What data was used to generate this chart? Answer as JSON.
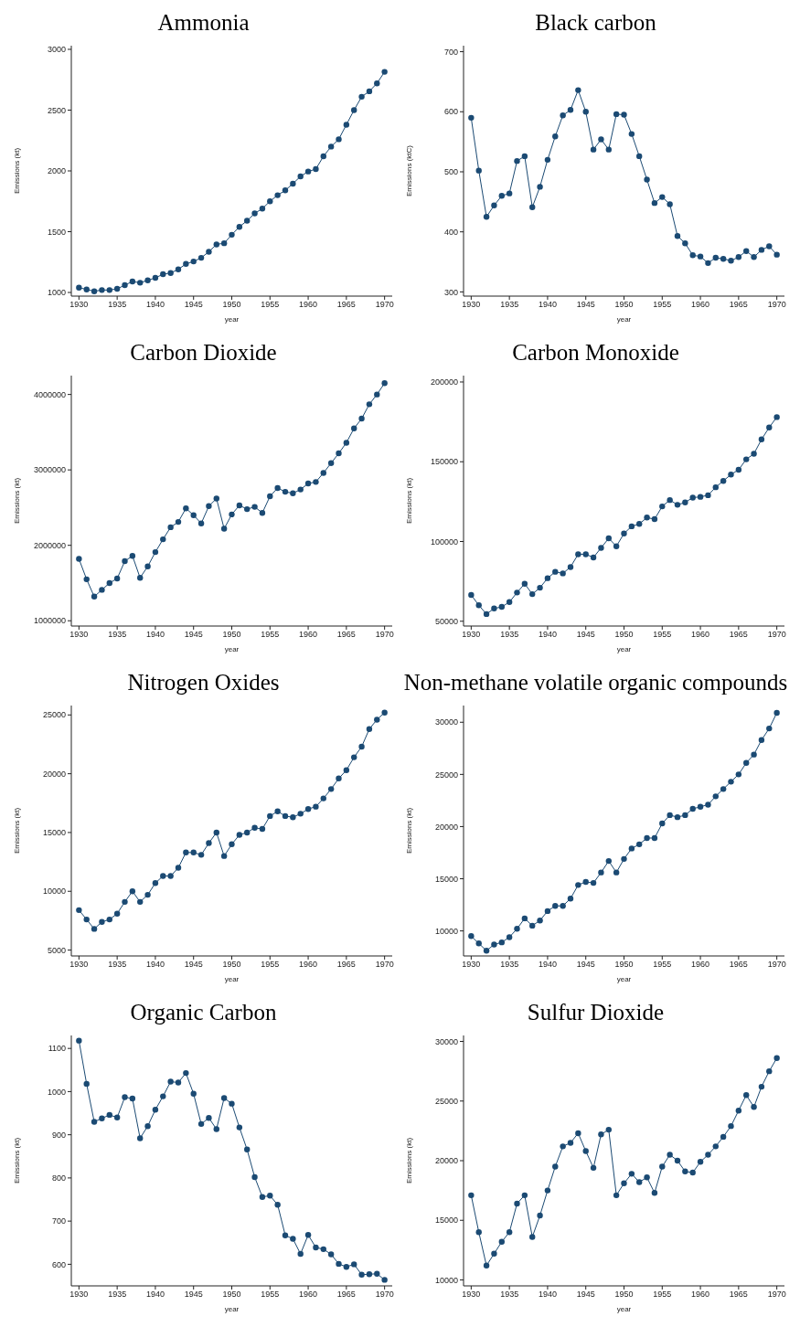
{
  "chart_data": [
    {
      "type": "line",
      "title": "Ammonia",
      "xlabel": "year",
      "ylabel": "Emissions (kt)",
      "color": "#1b4a73",
      "marker": "circle",
      "xlim": [
        1929,
        1971
      ],
      "xticks": [
        1930,
        1935,
        1940,
        1945,
        1950,
        1955,
        1960,
        1965,
        1970
      ],
      "ylim": [
        970,
        3030
      ],
      "yticks": [
        1000,
        1500,
        2000,
        2500,
        3000
      ],
      "x": [
        1930,
        1931,
        1932,
        1933,
        1934,
        1935,
        1936,
        1937,
        1938,
        1939,
        1940,
        1941,
        1942,
        1943,
        1944,
        1945,
        1946,
        1947,
        1948,
        1949,
        1950,
        1951,
        1952,
        1953,
        1954,
        1955,
        1956,
        1957,
        1958,
        1959,
        1960,
        1961,
        1962,
        1963,
        1964,
        1965,
        1966,
        1967,
        1968,
        1969,
        1970
      ],
      "values": [
        1040,
        1025,
        1010,
        1020,
        1020,
        1030,
        1060,
        1090,
        1080,
        1100,
        1120,
        1150,
        1160,
        1190,
        1235,
        1255,
        1285,
        1335,
        1395,
        1405,
        1475,
        1540,
        1590,
        1650,
        1690,
        1750,
        1800,
        1840,
        1895,
        1955,
        1995,
        2015,
        2120,
        2200,
        2260,
        2380,
        2500,
        2610,
        2655,
        2720,
        2815
      ]
    },
    {
      "type": "line",
      "title": "Black carbon",
      "xlabel": "year",
      "ylabel": "Emissions (ktC)",
      "color": "#1b4a73",
      "marker": "circle",
      "xlim": [
        1929,
        1971
      ],
      "xticks": [
        1930,
        1935,
        1940,
        1945,
        1950,
        1955,
        1960,
        1965,
        1970
      ],
      "ylim": [
        293,
        710
      ],
      "yticks": [
        300,
        400,
        500,
        600,
        700
      ],
      "x": [
        1930,
        1931,
        1932,
        1933,
        1934,
        1935,
        1936,
        1937,
        1938,
        1939,
        1940,
        1941,
        1942,
        1943,
        1944,
        1945,
        1946,
        1947,
        1948,
        1949,
        1950,
        1951,
        1952,
        1953,
        1954,
        1955,
        1956,
        1957,
        1958,
        1959,
        1960,
        1961,
        1962,
        1963,
        1964,
        1965,
        1966,
        1967,
        1968,
        1969,
        1970
      ],
      "values": [
        590,
        502,
        425,
        444,
        460,
        464,
        518,
        526,
        441,
        475,
        520,
        559,
        594,
        603,
        636,
        600,
        537,
        554,
        537,
        596,
        595,
        563,
        526,
        487,
        448,
        458,
        446,
        393,
        381,
        361,
        359,
        348,
        357,
        355,
        352,
        358,
        368,
        358,
        370,
        376,
        362
      ]
    },
    {
      "type": "line",
      "title": "Carbon Dioxide",
      "xlabel": "year",
      "ylabel": "Emissions (kt)",
      "color": "#1b4a73",
      "marker": "circle",
      "xlim": [
        1929,
        1971
      ],
      "xticks": [
        1930,
        1935,
        1940,
        1945,
        1950,
        1955,
        1960,
        1965,
        1970
      ],
      "ylim": [
        930000,
        4250000
      ],
      "yticks": [
        1000000,
        2000000,
        3000000,
        4000000
      ],
      "x": [
        1930,
        1931,
        1932,
        1933,
        1934,
        1935,
        1936,
        1937,
        1938,
        1939,
        1940,
        1941,
        1942,
        1943,
        1944,
        1945,
        1946,
        1947,
        1948,
        1949,
        1950,
        1951,
        1952,
        1953,
        1954,
        1955,
        1956,
        1957,
        1958,
        1959,
        1960,
        1961,
        1962,
        1963,
        1964,
        1965,
        1966,
        1967,
        1968,
        1969,
        1970
      ],
      "values": [
        1820000,
        1550000,
        1320000,
        1410000,
        1500000,
        1560000,
        1790000,
        1860000,
        1570000,
        1720000,
        1910000,
        2080000,
        2240000,
        2310000,
        2490000,
        2400000,
        2290000,
        2520000,
        2620000,
        2220000,
        2410000,
        2530000,
        2480000,
        2510000,
        2430000,
        2650000,
        2760000,
        2710000,
        2690000,
        2740000,
        2820000,
        2840000,
        2960000,
        3090000,
        3220000,
        3360000,
        3550000,
        3680000,
        3870000,
        4000000,
        4150000
      ]
    },
    {
      "type": "line",
      "title": "Carbon Monoxide",
      "xlabel": "year",
      "ylabel": "Emissions (kt)",
      "color": "#1b4a73",
      "marker": "circle",
      "xlim": [
        1929,
        1971
      ],
      "xticks": [
        1930,
        1935,
        1940,
        1945,
        1950,
        1955,
        1960,
        1965,
        1970
      ],
      "ylim": [
        47000,
        204000
      ],
      "yticks": [
        50000,
        100000,
        150000,
        200000
      ],
      "x": [
        1930,
        1931,
        1932,
        1933,
        1934,
        1935,
        1936,
        1937,
        1938,
        1939,
        1940,
        1941,
        1942,
        1943,
        1944,
        1945,
        1946,
        1947,
        1948,
        1949,
        1950,
        1951,
        1952,
        1953,
        1954,
        1955,
        1956,
        1957,
        1958,
        1959,
        1960,
        1961,
        1962,
        1963,
        1964,
        1965,
        1966,
        1967,
        1968,
        1969,
        1970
      ],
      "values": [
        66500,
        60000,
        54500,
        58000,
        59000,
        62000,
        68000,
        73500,
        67000,
        71000,
        77000,
        81000,
        80000,
        84000,
        92000,
        92000,
        90000,
        96000,
        102000,
        97000,
        105000,
        109500,
        111000,
        115000,
        114000,
        122000,
        126000,
        123000,
        124500,
        127500,
        128000,
        129000,
        134000,
        138000,
        142000,
        145000,
        151500,
        155000,
        164000,
        171500,
        178000
      ]
    },
    {
      "type": "line",
      "title": "Nitrogen Oxides",
      "xlabel": "year",
      "ylabel": "Emissions (kt)",
      "color": "#1b4a73",
      "marker": "circle",
      "xlim": [
        1929,
        1971
      ],
      "xticks": [
        1930,
        1935,
        1940,
        1945,
        1950,
        1955,
        1960,
        1965,
        1970
      ],
      "ylim": [
        4500,
        25800
      ],
      "yticks": [
        5000,
        10000,
        15000,
        20000,
        25000
      ],
      "x": [
        1930,
        1931,
        1932,
        1933,
        1934,
        1935,
        1936,
        1937,
        1938,
        1939,
        1940,
        1941,
        1942,
        1943,
        1944,
        1945,
        1946,
        1947,
        1948,
        1949,
        1950,
        1951,
        1952,
        1953,
        1954,
        1955,
        1956,
        1957,
        1958,
        1959,
        1960,
        1961,
        1962,
        1963,
        1964,
        1965,
        1966,
        1967,
        1968,
        1969,
        1970
      ],
      "values": [
        8400,
        7600,
        6800,
        7400,
        7600,
        8100,
        9100,
        10000,
        9100,
        9700,
        10700,
        11300,
        11300,
        12000,
        13300,
        13300,
        13100,
        14100,
        15000,
        13000,
        14000,
        14800,
        15000,
        15400,
        15300,
        16400,
        16800,
        16400,
        16300,
        16600,
        17000,
        17200,
        17900,
        18700,
        19600,
        20300,
        21400,
        22300,
        23800,
        24600,
        25200
      ]
    },
    {
      "type": "line",
      "title": "Non-methane volatile organic compounds",
      "xlabel": "year",
      "ylabel": "Emissions (kt)",
      "color": "#1b4a73",
      "marker": "circle",
      "xlim": [
        1929,
        1971
      ],
      "xticks": [
        1930,
        1935,
        1940,
        1945,
        1950,
        1955,
        1960,
        1965,
        1970
      ],
      "ylim": [
        7600,
        31600
      ],
      "yticks": [
        10000,
        15000,
        20000,
        25000,
        30000
      ],
      "x": [
        1930,
        1931,
        1932,
        1933,
        1934,
        1935,
        1936,
        1937,
        1938,
        1939,
        1940,
        1941,
        1942,
        1943,
        1944,
        1945,
        1946,
        1947,
        1948,
        1949,
        1950,
        1951,
        1952,
        1953,
        1954,
        1955,
        1956,
        1957,
        1958,
        1959,
        1960,
        1961,
        1962,
        1963,
        1964,
        1965,
        1966,
        1967,
        1968,
        1969,
        1970
      ],
      "values": [
        9500,
        8800,
        8100,
        8700,
        8900,
        9400,
        10200,
        11200,
        10500,
        11000,
        11900,
        12400,
        12400,
        13100,
        14400,
        14700,
        14600,
        15600,
        16700,
        15600,
        16900,
        17900,
        18300,
        18900,
        18900,
        20300,
        21100,
        20900,
        21100,
        21700,
        21900,
        22100,
        22900,
        23600,
        24300,
        25000,
        26100,
        26900,
        28300,
        29400,
        30900
      ]
    },
    {
      "type": "line",
      "title": "Organic Carbon",
      "xlabel": "year",
      "ylabel": "Emissions (kt)",
      "color": "#1b4a73",
      "marker": "circle",
      "xlim": [
        1929,
        1971
      ],
      "xticks": [
        1930,
        1935,
        1940,
        1945,
        1950,
        1955,
        1960,
        1965,
        1970
      ],
      "ylim": [
        550,
        1130
      ],
      "yticks": [
        600,
        700,
        800,
        900,
        1000,
        1100
      ],
      "x": [
        1930,
        1931,
        1932,
        1933,
        1934,
        1935,
        1936,
        1937,
        1938,
        1939,
        1940,
        1941,
        1942,
        1943,
        1944,
        1945,
        1946,
        1947,
        1948,
        1949,
        1950,
        1951,
        1952,
        1953,
        1954,
        1955,
        1956,
        1957,
        1958,
        1959,
        1960,
        1961,
        1962,
        1963,
        1964,
        1965,
        1966,
        1967,
        1968,
        1969,
        1970
      ],
      "values": [
        1118,
        1018,
        930,
        938,
        946,
        940,
        987,
        984,
        892,
        920,
        958,
        989,
        1023,
        1021,
        1043,
        995,
        925,
        939,
        913,
        985,
        972,
        917,
        866,
        802,
        756,
        759,
        738,
        667,
        659,
        624,
        668,
        639,
        635,
        623,
        601,
        594,
        600,
        576,
        577,
        578,
        564
      ]
    },
    {
      "type": "line",
      "title": "Sulfur Dioxide",
      "xlabel": "year",
      "ylabel": "Emissions (kt)",
      "color": "#1b4a73",
      "marker": "circle",
      "xlim": [
        1929,
        1971
      ],
      "xticks": [
        1930,
        1935,
        1940,
        1945,
        1950,
        1955,
        1960,
        1965,
        1970
      ],
      "ylim": [
        9500,
        30500
      ],
      "yticks": [
        10000,
        15000,
        20000,
        25000,
        30000
      ],
      "x": [
        1930,
        1931,
        1932,
        1933,
        1934,
        1935,
        1936,
        1937,
        1938,
        1939,
        1940,
        1941,
        1942,
        1943,
        1944,
        1945,
        1946,
        1947,
        1948,
        1949,
        1950,
        1951,
        1952,
        1953,
        1954,
        1955,
        1956,
        1957,
        1958,
        1959,
        1960,
        1961,
        1962,
        1963,
        1964,
        1965,
        1966,
        1967,
        1968,
        1969,
        1970
      ],
      "values": [
        17100,
        14000,
        11200,
        12200,
        13200,
        14000,
        16400,
        17100,
        13600,
        15400,
        17500,
        19500,
        21200,
        21500,
        22300,
        20800,
        19400,
        22200,
        22600,
        17100,
        18100,
        18900,
        18200,
        18600,
        17300,
        19500,
        20500,
        20000,
        19100,
        19000,
        19900,
        20500,
        21200,
        22000,
        22900,
        24200,
        25500,
        24500,
        26200,
        27500,
        28600
      ]
    }
  ]
}
